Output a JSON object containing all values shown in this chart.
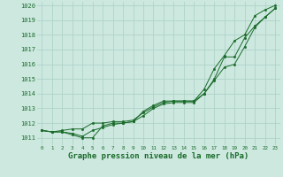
{
  "bg_color": "#cce8df",
  "grid_color": "#aacfc6",
  "line_color": "#1a6b2a",
  "xlabel": "Graphe pression niveau de la mer (hPa)",
  "xlabel_fontsize": 6.5,
  "ylabel_min": 1011,
  "ylabel_max": 1020,
  "x_min": 0,
  "x_max": 23,
  "line1": [
    1011.5,
    1011.4,
    1011.4,
    1011.3,
    1011.1,
    1011.5,
    1011.7,
    1011.9,
    1012.0,
    1012.1,
    1012.8,
    1013.2,
    1013.5,
    1013.5,
    1013.5,
    1013.5,
    1014.3,
    1015.7,
    1016.6,
    1017.6,
    1018.0,
    1019.3,
    1019.7,
    1020.0
  ],
  "line2": [
    1011.5,
    1011.4,
    1011.4,
    1011.2,
    1011.0,
    1011.0,
    1011.8,
    1012.0,
    1012.0,
    1012.1,
    1012.5,
    1013.0,
    1013.3,
    1013.4,
    1013.4,
    1013.4,
    1014.0,
    1015.0,
    1016.5,
    1016.5,
    1017.8,
    1018.6,
    1019.2,
    1019.8
  ],
  "line3": [
    1011.5,
    1011.4,
    1011.5,
    1011.6,
    1011.6,
    1012.0,
    1012.0,
    1012.1,
    1012.1,
    1012.2,
    1012.7,
    1013.1,
    1013.4,
    1013.5,
    1013.5,
    1013.5,
    1014.0,
    1014.9,
    1015.8,
    1016.0,
    1017.2,
    1018.5,
    1019.2,
    1019.8
  ],
  "ytick_fontsize": 5.0,
  "xtick_fontsize": 4.2,
  "marker_size": 1.8,
  "line_width": 0.7
}
